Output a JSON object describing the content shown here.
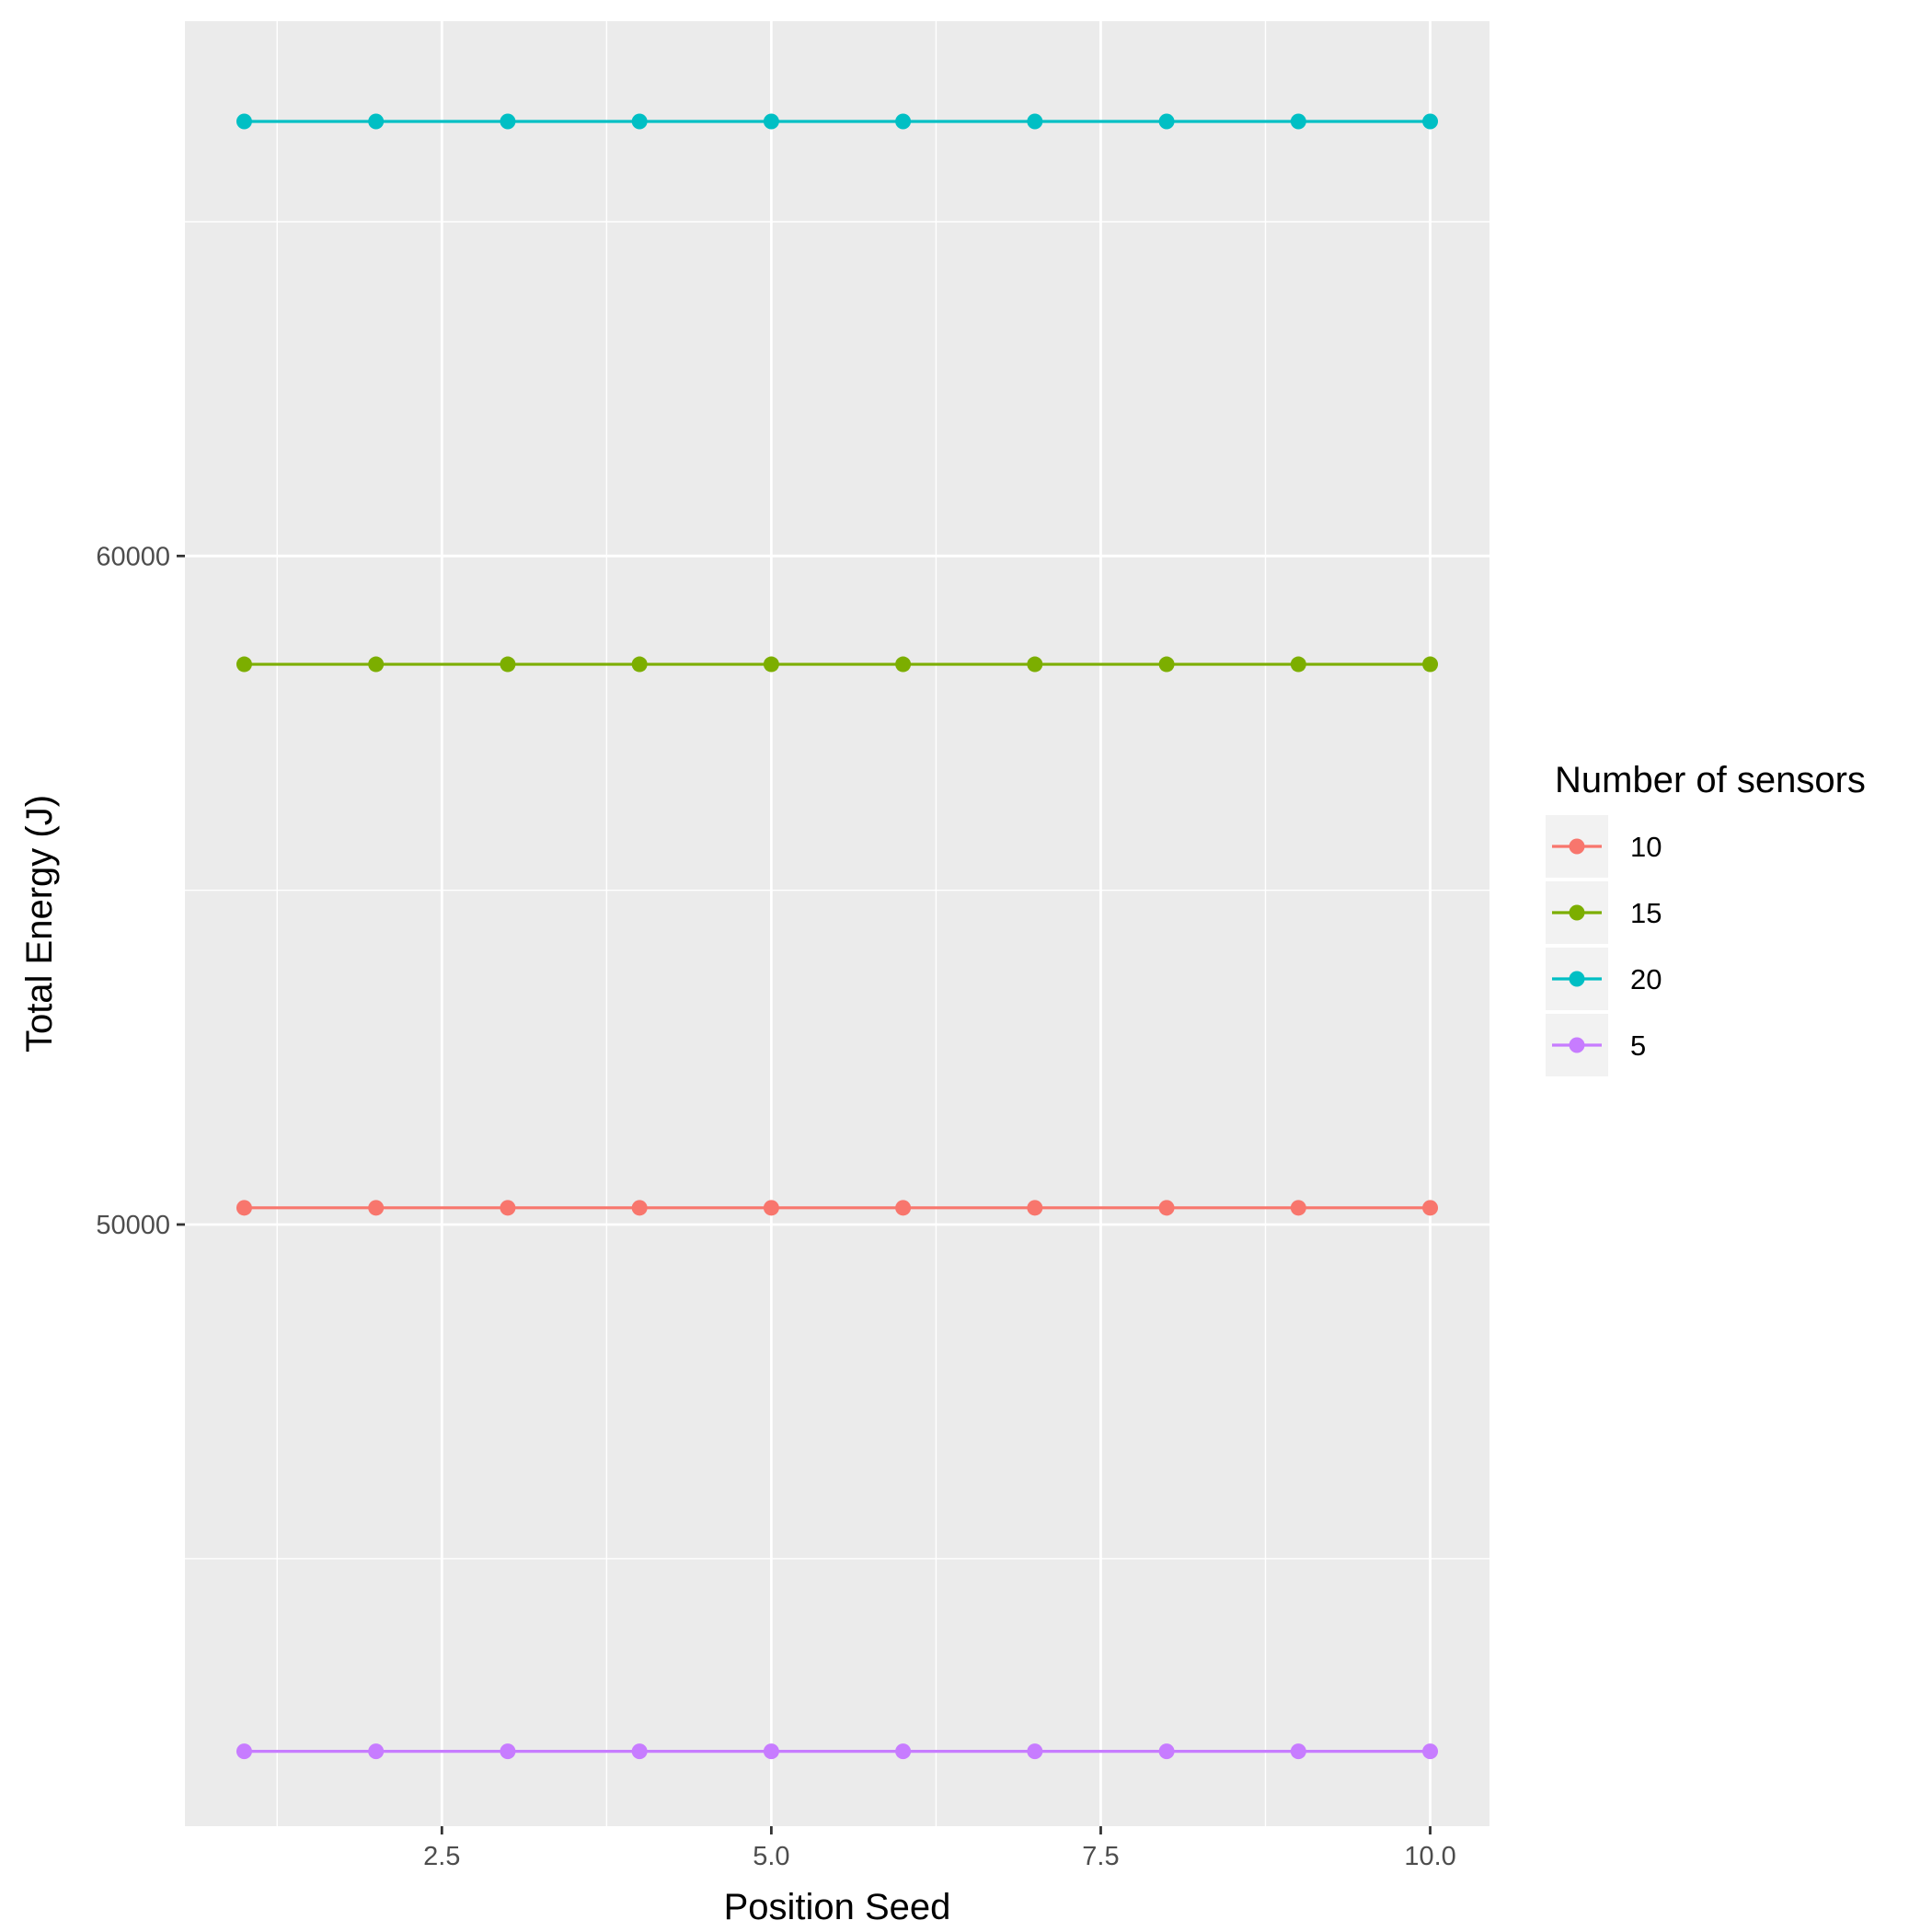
{
  "chart_data": {
    "type": "line",
    "xlabel": "Position Seed",
    "ylabel": "Total Energy (J)",
    "xlim": [
      0.55,
      10.45
    ],
    "ylim": [
      41000,
      68000
    ],
    "x_ticks": [
      2.5,
      5.0,
      7.5,
      10.0
    ],
    "x_tick_labels": [
      "2.5",
      "5.0",
      "7.5",
      "10.0"
    ],
    "y_ticks": [
      50000,
      60000
    ],
    "y_tick_labels": [
      "50000",
      "60000"
    ],
    "y_minor_ticks": [
      45000,
      55000,
      65000
    ],
    "grid": true,
    "legend_position": "right",
    "legend_title": "Number of sensors",
    "x": [
      1,
      2,
      3,
      4,
      5,
      6,
      7,
      8,
      9,
      10
    ],
    "series": [
      {
        "name": "10",
        "color": "#F8766D",
        "values": [
          50250,
          50250,
          50250,
          50250,
          50250,
          50250,
          50250,
          50250,
          50250,
          50250
        ]
      },
      {
        "name": "15",
        "color": "#7CAE00",
        "values": [
          58380,
          58380,
          58380,
          58380,
          58380,
          58380,
          58380,
          58380,
          58380,
          58380
        ]
      },
      {
        "name": "20",
        "color": "#00BFC4",
        "values": [
          66500,
          66500,
          66500,
          66500,
          66500,
          66500,
          66500,
          66500,
          66500,
          66500
        ]
      },
      {
        "name": "5",
        "color": "#C77CFF",
        "values": [
          42120,
          42120,
          42120,
          42120,
          42120,
          42120,
          42120,
          42120,
          42120,
          42120
        ]
      }
    ]
  }
}
